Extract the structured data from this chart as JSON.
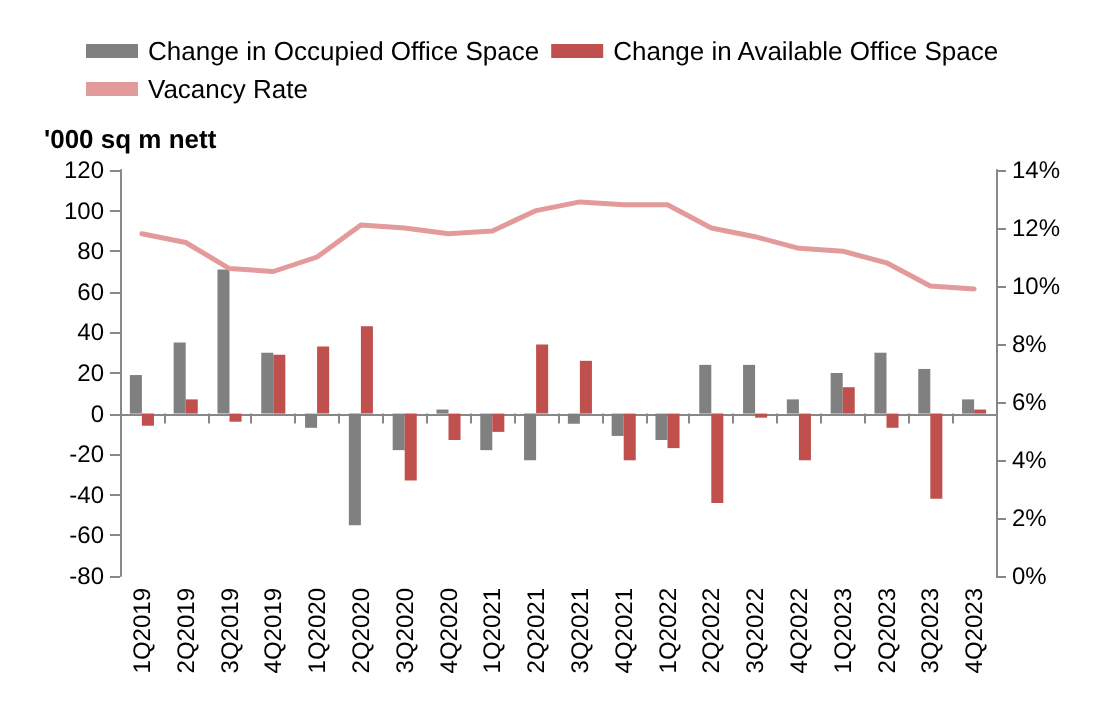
{
  "chart_data": {
    "type": "bar",
    "ylabel": "'000 sq m nett",
    "categories": [
      "1Q2019",
      "2Q2019",
      "3Q2019",
      "4Q2019",
      "1Q2020",
      "2Q2020",
      "3Q2020",
      "4Q2020",
      "1Q2021",
      "2Q2021",
      "3Q2021",
      "4Q2021",
      "1Q2022",
      "2Q2022",
      "3Q2022",
      "4Q2022",
      "1Q2023",
      "2Q2023",
      "3Q2023",
      "4Q2023"
    ],
    "series": [
      {
        "name": "Change in Occupied Office Space",
        "color": "#808080",
        "values": [
          19,
          35,
          71,
          30,
          -7,
          -55,
          -18,
          2,
          -18,
          -23,
          -5,
          -11,
          -13,
          24,
          24,
          7,
          20,
          30,
          22,
          7
        ]
      },
      {
        "name": "Change in Available Office Space",
        "color": "#c0504d",
        "values": [
          -6,
          7,
          -4,
          29,
          33,
          43,
          -33,
          -13,
          -9,
          34,
          26,
          -23,
          -17,
          -44,
          -2,
          -23,
          13,
          -7,
          -42,
          2
        ]
      },
      {
        "name": "Vacancy Rate",
        "type": "line",
        "axis": "y2",
        "color": "#e29a9a",
        "values": [
          11.8,
          11.5,
          10.6,
          10.5,
          11.0,
          12.1,
          12.0,
          11.8,
          11.9,
          12.6,
          12.9,
          12.8,
          12.8,
          12.0,
          11.7,
          11.3,
          11.2,
          10.8,
          10.0,
          9.9
        ]
      }
    ],
    "ylim": [
      -80,
      120
    ],
    "yticks": [
      -80,
      -60,
      -40,
      -20,
      0,
      20,
      40,
      60,
      80,
      100,
      120
    ],
    "y2lim": [
      0,
      14
    ],
    "y2ticks": [
      {
        "value": 0,
        "label": "0%"
      },
      {
        "value": 2,
        "label": "2%"
      },
      {
        "value": 4,
        "label": "4%"
      },
      {
        "value": 6,
        "label": "6%"
      },
      {
        "value": 8,
        "label": "8%"
      },
      {
        "value": 10,
        "label": "10%"
      },
      {
        "value": 12,
        "label": "12%"
      },
      {
        "value": 14,
        "label": "14%"
      }
    ],
    "legend": "top"
  }
}
